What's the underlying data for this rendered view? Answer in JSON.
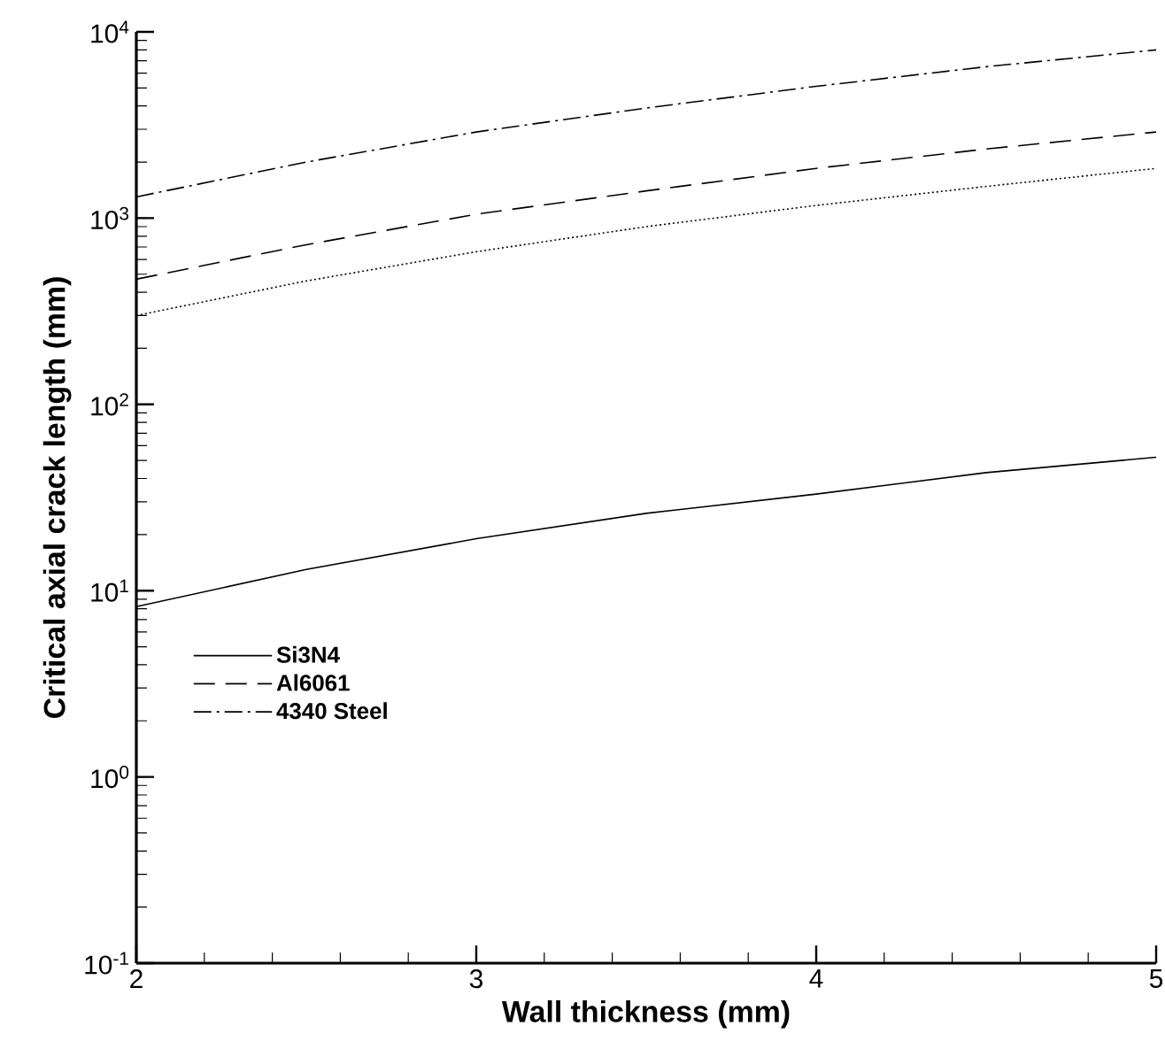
{
  "chart_data": {
    "type": "line",
    "xlabel": "Wall thickness (mm)",
    "ylabel": "Critical axial crack length (mm)",
    "x": [
      2,
      2.5,
      3,
      3.5,
      4,
      4.5,
      5
    ],
    "series": [
      {
        "name": "Si3N4",
        "color": "#000000",
        "line_style": "solid",
        "values": [
          8.2,
          13,
          19,
          26,
          33,
          43,
          52
        ]
      },
      {
        "name": "Al6061",
        "color": "#000000",
        "line_style": "dashed",
        "values": [
          470,
          720,
          1050,
          1400,
          1850,
          2350,
          2900
        ]
      },
      {
        "name": "4340 Steel",
        "color": "#000000",
        "line_style": "dashdot",
        "values": [
          1300,
          2000,
          2900,
          3900,
          5100,
          6500,
          8000
        ]
      },
      {
        "color": "#000000",
        "line_style": "dotted",
        "values": [
          300,
          460,
          660,
          900,
          1170,
          1480,
          1850
        ]
      }
    ],
    "log": "y",
    "xlim": [
      2,
      5
    ],
    "ylim": [
      0.1,
      10000
    ],
    "xticks": [
      2,
      3,
      4,
      5
    ],
    "yticks": [
      {
        "value": 0.1,
        "label": "10$^{-1}$"
      },
      {
        "value": 1,
        "label": "10$^{0}$"
      },
      {
        "value": 10,
        "label": "10$^{1}$"
      },
      {
        "value": 100,
        "label": "10$^{2}$"
      },
      {
        "value": 1000,
        "label": "10$^{3}$"
      },
      {
        "value": 10000,
        "label": "10$^{4}$"
      }
    ],
    "grid": false,
    "legend": "left",
    "marker": "none"
  }
}
